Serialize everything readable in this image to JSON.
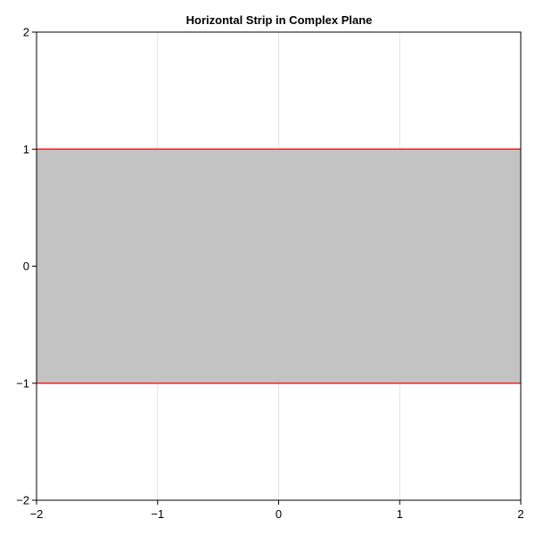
{
  "chart_data": {
    "type": "area",
    "title": "Horizontal Strip in Complex Plane",
    "xlabel": "",
    "ylabel": "",
    "xlim": [
      -2,
      2
    ],
    "ylim": [
      -2,
      2
    ],
    "grid": true,
    "xticks": [
      -2,
      -1,
      0,
      1,
      2
    ],
    "yticks": [
      -2,
      -1,
      0,
      1,
      2
    ],
    "xtick_labels": [
      "−2",
      "−1",
      "0",
      "1",
      "2"
    ],
    "ytick_labels": [
      "−2",
      "−1",
      "0",
      "1",
      "2"
    ],
    "strip": {
      "x": [
        -2,
        2
      ],
      "y_lower": -1,
      "y_upper": 1,
      "fill_color": "#c0c0c0"
    },
    "boundary_lines": [
      {
        "x": [
          -2,
          2
        ],
        "y": [
          1,
          1
        ],
        "color": "#e8231f"
      },
      {
        "x": [
          -2,
          2
        ],
        "y": [
          -1,
          -1
        ],
        "color": "#e8231f"
      }
    ]
  }
}
